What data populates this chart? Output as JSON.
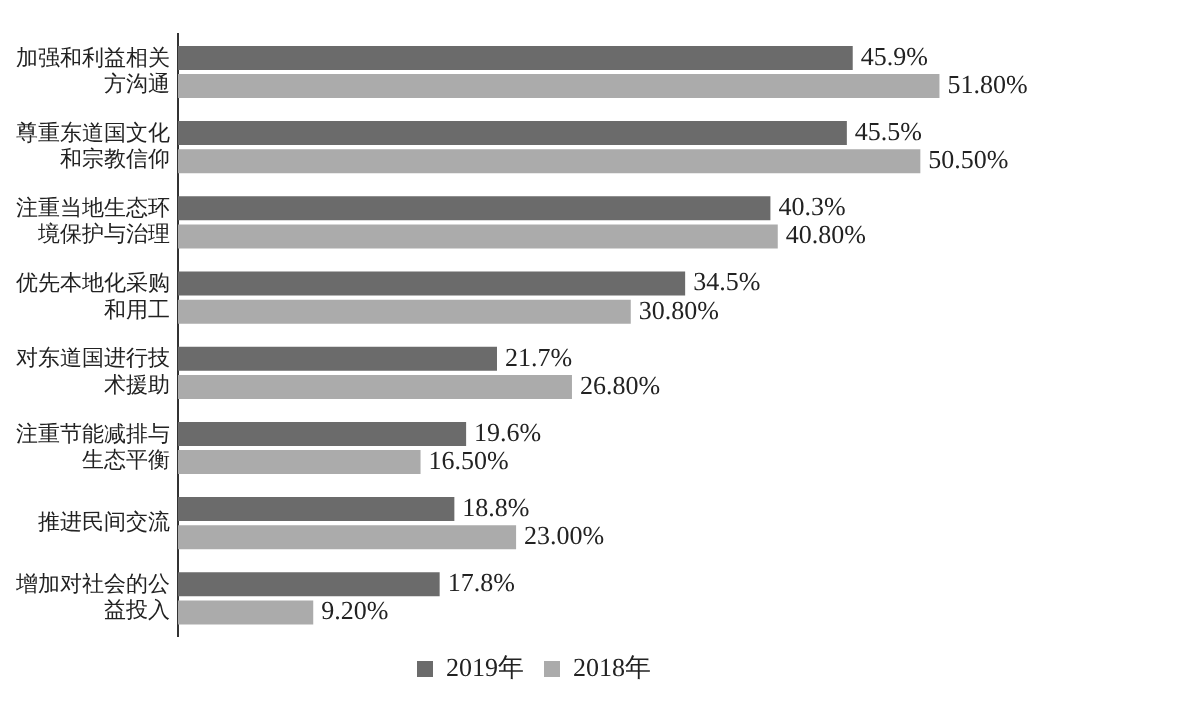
{
  "chart_data": {
    "type": "bar",
    "orientation": "horizontal",
    "categories": [
      "加强和利益相关方沟通",
      "尊重东道国文化和宗教信仰",
      "注重当地生态环境保护与治理",
      "优先本地化采购和用工",
      "对东道国进行技术援助",
      "注重节能减排与生态平衡",
      "推进民间交流",
      "增加对社会的公益投入"
    ],
    "series": [
      {
        "name": "2019年",
        "color": "#6b6b6b",
        "values": [
          45.9,
          45.5,
          40.3,
          34.5,
          21.7,
          19.6,
          18.8,
          17.8
        ],
        "value_labels": [
          "45.9%",
          "45.5%",
          "40.3%",
          "34.5%",
          "21.7%",
          "19.6%",
          "18.8%",
          "17.8%"
        ]
      },
      {
        "name": "2018年",
        "color": "#ababab",
        "values": [
          51.8,
          50.5,
          40.8,
          30.8,
          26.8,
          16.5,
          23.0,
          9.2
        ],
        "value_labels": [
          "51.80%",
          "50.50%",
          "40.80%",
          "30.80%",
          "26.80%",
          "16.50%",
          "23.00%",
          "9.20%"
        ]
      }
    ],
    "tick_labels": "y",
    "grid": false,
    "legend": "bottom"
  }
}
